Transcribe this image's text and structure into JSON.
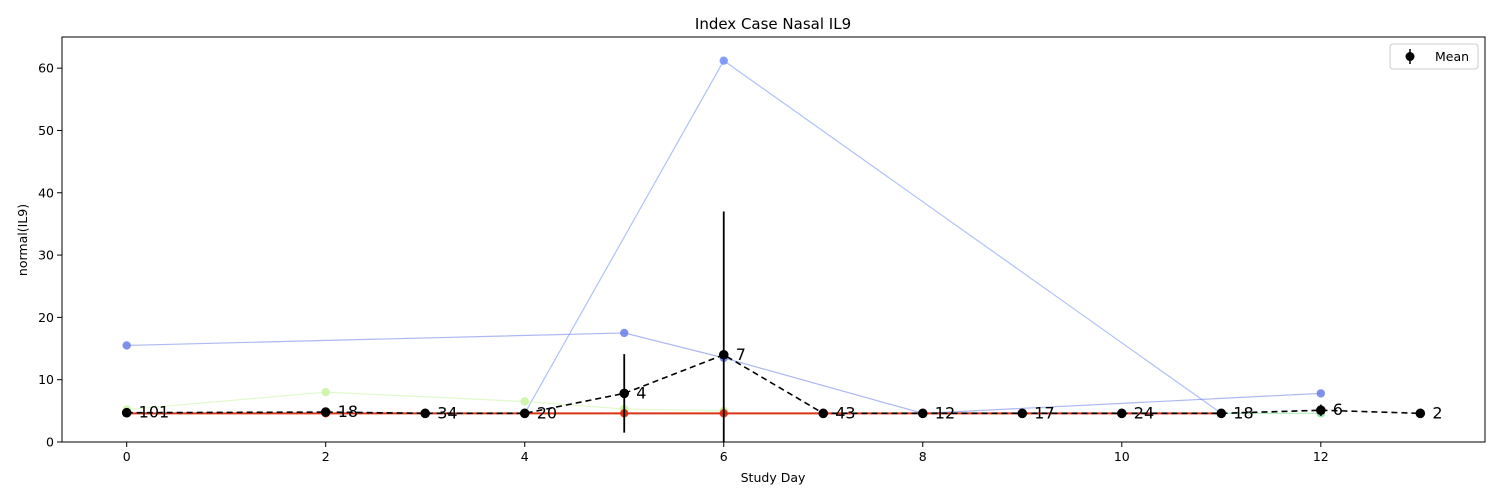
{
  "chart_data": {
    "type": "line",
    "title": "Index Case Nasal IL9",
    "xlabel": "Study Day",
    "ylabel": "normal(IL9)",
    "xlim": [
      -0.65,
      13.65
    ],
    "ylim": [
      0,
      65
    ],
    "xticks": [
      0,
      2,
      4,
      6,
      8,
      10,
      12
    ],
    "yticks": [
      0,
      10,
      20,
      30,
      40,
      50,
      60
    ],
    "grid": false,
    "legend": {
      "position": "top-right",
      "entries": [
        "Mean"
      ]
    },
    "individual_series": [
      {
        "color": "#6a7ee8",
        "x": [
          0,
          5,
          6,
          8,
          12
        ],
        "y": [
          15.5,
          17.5,
          13.5,
          4.6,
          7.8
        ]
      },
      {
        "color": "#6c8ef5",
        "x": [
          4,
          6,
          11
        ],
        "y": [
          4.6,
          61.2,
          4.6
        ]
      },
      {
        "color": "#c8f5a0",
        "x": [
          0,
          2,
          4,
          5,
          6
        ],
        "y": [
          5.2,
          8.0,
          6.5,
          5.3,
          5.0
        ]
      },
      {
        "color": "#7fe0a0",
        "x": [
          11,
          12
        ],
        "y": [
          4.6,
          4.6
        ]
      },
      {
        "color": "#d62a0a",
        "x": [
          0,
          2,
          3,
          4,
          5,
          6,
          7,
          8,
          9,
          10,
          11
        ],
        "y": [
          4.6,
          4.6,
          4.6,
          4.6,
          4.6,
          4.6,
          4.6,
          4.6,
          4.6,
          4.6,
          4.6
        ]
      }
    ],
    "mean_series": {
      "name": "Mean",
      "color": "#000000",
      "x": [
        0,
        2,
        3,
        4,
        5,
        6,
        7,
        8,
        9,
        10,
        11,
        12,
        13
      ],
      "y": [
        4.7,
        4.8,
        4.6,
        4.6,
        7.8,
        14.0,
        4.6,
        4.6,
        4.6,
        4.6,
        4.6,
        5.1,
        4.6
      ],
      "error": [
        0.3,
        0.5,
        0.2,
        0.3,
        6.3,
        23.0,
        0.2,
        0.2,
        0.2,
        0.3,
        0.2,
        0.9,
        0.1
      ],
      "counts": [
        "101",
        "18",
        "34",
        "20",
        "4",
        "7",
        "43",
        "12",
        "17",
        "24",
        "18",
        "6",
        "2"
      ]
    }
  }
}
